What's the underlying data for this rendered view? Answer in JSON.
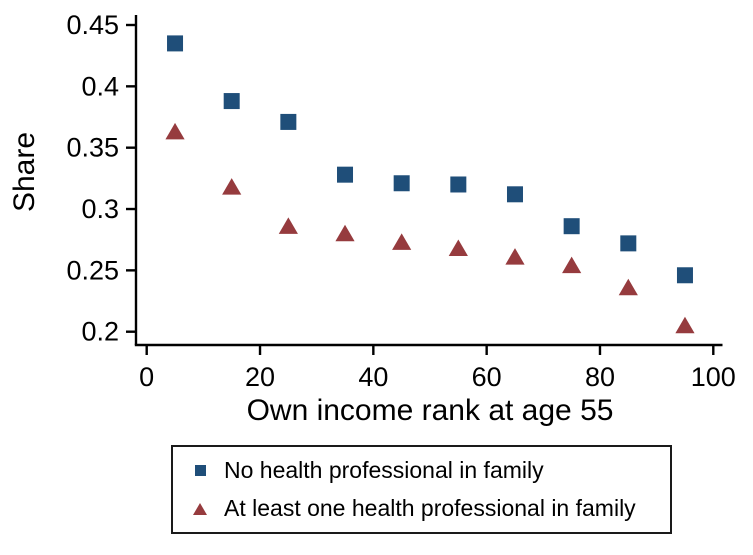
{
  "chart_data": {
    "type": "scatter",
    "x": [
      5,
      15,
      25,
      35,
      45,
      55,
      65,
      75,
      85,
      95
    ],
    "series": [
      {
        "name": "No health professional in family",
        "marker": "square",
        "color": "#1F4E79",
        "values": [
          0.435,
          0.388,
          0.371,
          0.328,
          0.321,
          0.32,
          0.312,
          0.286,
          0.272,
          0.246
        ]
      },
      {
        "name": "At least one health professional in family",
        "marker": "triangle",
        "color": "#963B3E",
        "values": [
          0.363,
          0.318,
          0.286,
          0.28,
          0.273,
          0.268,
          0.261,
          0.254,
          0.236,
          0.205
        ]
      }
    ],
    "title": "",
    "xlabel": "Own income rank at age 55",
    "ylabel": "Share",
    "xlim": [
      0,
      100
    ],
    "ylim": [
      0.2,
      0.45
    ],
    "x_ticks": [
      0,
      20,
      40,
      60,
      80,
      100
    ],
    "x_tick_labels": [
      "0",
      "20",
      "40",
      "60",
      "80",
      "100"
    ],
    "y_ticks": [
      0.2,
      0.25,
      0.3,
      0.35,
      0.4,
      0.45
    ],
    "y_tick_labels": [
      "0.2",
      "0.25",
      "0.3",
      "0.35",
      "0.4",
      "0.45"
    ],
    "grid": false,
    "legend_position": "bottom",
    "axis_color": "#000000",
    "background_color": "#FFFFFF"
  }
}
